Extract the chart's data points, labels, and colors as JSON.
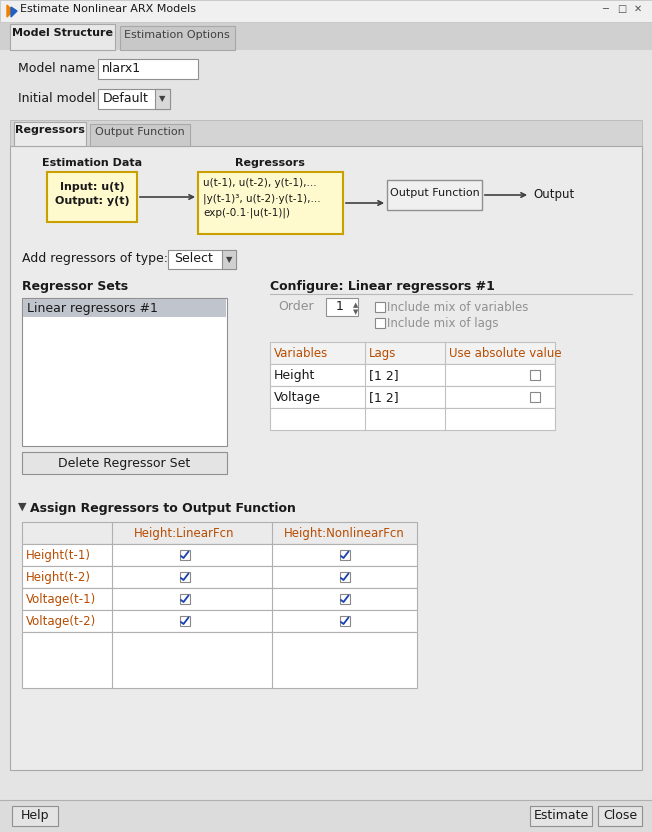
{
  "title": "Estimate Nonlinear ARX Models",
  "bg_color": "#dcdcdc",
  "tab_area_bg": "#d4d4d4",
  "content_bg": "#e8e8e8",
  "white": "#ffffff",
  "tab1_label": "Model Structure",
  "tab2_label": "Estimation Options",
  "model_name_label": "Model name",
  "model_name_value": "nlarx1",
  "initial_model_label": "Initial model",
  "initial_model_value": "Default",
  "regressors_tab": "Regressors",
  "output_function_tab": "Output Function",
  "block_bg": "#fffacd",
  "block_border": "#c8a000",
  "est_data_title": "Estimation Data",
  "reg_title": "Regressors",
  "reg_content1": "u(t-1), u(t-2), y(t-1),...",
  "reg_content2": "|y(t-1)³, u(t-2)·y(t-1),...",
  "reg_content3": "exp(-0.1·|u(t-1)|)",
  "out_func_label": "Output Function",
  "output_label": "Output",
  "add_reg_label": "Add regressors of type:",
  "select_label": "Select",
  "reg_sets_label": "Regressor Sets",
  "configure_label": "Configure: Linear regressors #1",
  "linear_reg1": "Linear regressors #1",
  "order_label": "Order",
  "order_value": "1",
  "include_mix_vars": "Include mix of variables",
  "include_mix_lags": "Include mix of lags",
  "table_headers": [
    "Variables",
    "Lags",
    "Use absolute value"
  ],
  "table_rows": [
    [
      "Height",
      "[1 2]"
    ],
    [
      "Voltage",
      "[1 2]"
    ]
  ],
  "delete_btn": "Delete Regressor Set",
  "assign_label": "Assign Regressors to Output Function",
  "assign_rows": [
    [
      "Height(t-1)",
      true,
      true
    ],
    [
      "Height(t-2)",
      true,
      true
    ],
    [
      "Voltage(t-1)",
      true,
      true
    ],
    [
      "Voltage(t-2)",
      true,
      true
    ]
  ],
  "help_btn": "Help",
  "estimate_btn": "Estimate",
  "close_btn": "Close",
  "orange_color": "#b84c00",
  "dark_text": "#1a1a1a",
  "gray_text": "#888888",
  "border_color": "#a0a0a0"
}
